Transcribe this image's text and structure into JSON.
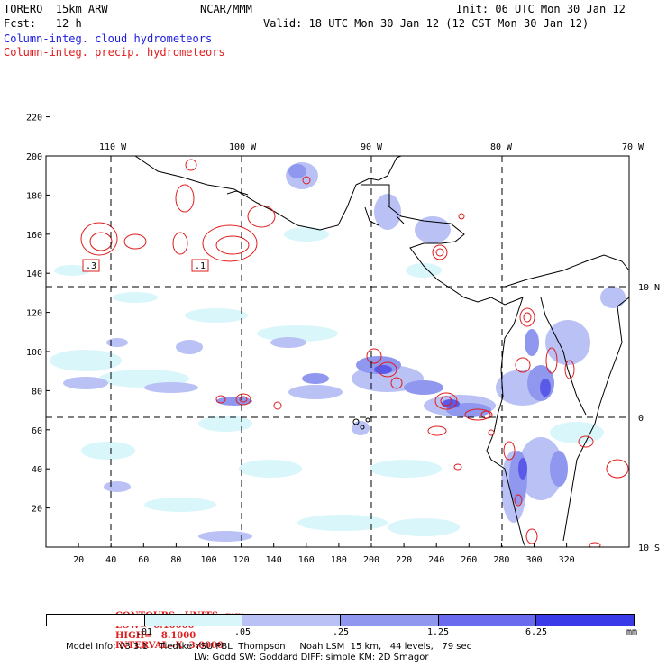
{
  "header": {
    "model": "TORERO  15km ARW",
    "center": "NCAR/MMM",
    "init": "Init: 06 UTC Mon 30 Jan 12",
    "fcst": "Fcst:   12 h",
    "valid": "Valid: 18 UTC Mon 30 Jan 12 (12 CST Mon 30 Jan 12)",
    "field_cloud": "Column-integ. cloud hydrometeors",
    "field_precip": "Column-integ. precip. hydrometeors"
  },
  "map": {
    "top_lon_labels": [
      "110 W",
      "100 W",
      "90 W",
      "80 W",
      "70 W"
    ],
    "right_lat_labels": [
      "10 N",
      "0",
      "10 S"
    ],
    "y_ticks": [
      "220",
      "200",
      "180",
      "160",
      "140",
      "120",
      "100",
      "80",
      "60",
      "40",
      "20"
    ],
    "x_ticks": [
      "20",
      "40",
      "60",
      "80",
      "100",
      "120",
      "140",
      "160",
      "180",
      "200",
      "220",
      "240",
      "260",
      "280",
      "300",
      "320"
    ],
    "box_labels": [
      ".3",
      ".1"
    ],
    "colors": {
      "shade_light": "#d9f6fa",
      "shade_mid1": "#b9c1f5",
      "shade_mid2": "#8f97ef",
      "shade_dark": "#3a3ae8",
      "contour": "#e01c1c",
      "coast": "#000000"
    }
  },
  "contour_info": {
    "units": "CONTOURS:  UNITS=mm",
    "low": "LOW=  0.10000",
    "high": "HIGH=   8.1000",
    "interval": "INTERVAL=X  3.0000"
  },
  "legend": {
    "labels": [
      ".01",
      ".05",
      ".25",
      "1.25",
      "6.25"
    ],
    "unit": "mm",
    "colors": [
      "#ffffff",
      "#d9f6fa",
      "#b9c1f5",
      "#8f97ef",
      "#6a6aee",
      "#3a3ae8"
    ]
  },
  "footer": {
    "line1": "Model Info: V3.3.1    Tiedtke YSU PBL  Thompson     Noah LSM  15 km,   44 levels,   79 sec",
    "line2": "LW: Godd SW: Goddard DIFF: simple KM: 2D Smagor"
  }
}
